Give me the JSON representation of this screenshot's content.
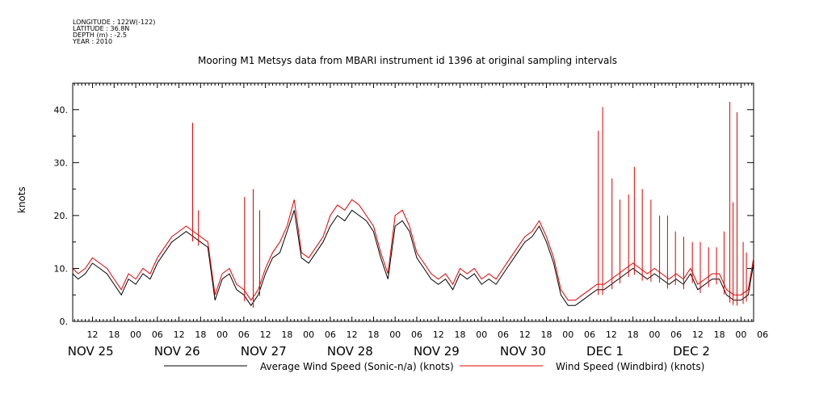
{
  "header": {
    "longitude": "LONGITUDE : 122W(-122)",
    "latitude": "LATITUDE : 36.8N",
    "depth": "DEPTH (m) : -2.5",
    "year": "YEAR : 2010"
  },
  "colors": {
    "average": "#000000",
    "windbird": "#e00000",
    "axis": "#000000"
  },
  "chart_data": {
    "type": "line",
    "title": "Mooring M1 Metsys data from MBARI instrument id 1396 at original sampling intervals",
    "ylabel": "knots",
    "ylim": [
      0,
      45
    ],
    "yticks": [
      "0.",
      "10.",
      "20.",
      "30.",
      "40."
    ],
    "x_unit": "hours since Nov 25 00:00",
    "xlim": [
      6.5,
      195.5
    ],
    "hour_ticks": [
      "12",
      "18",
      "00",
      "06",
      "12",
      "18",
      "00",
      "06",
      "12",
      "18",
      "00",
      "06",
      "12",
      "18",
      "00",
      "06",
      "12",
      "18",
      "00",
      "06",
      "12",
      "18",
      "00",
      "06",
      "12",
      "18",
      "00",
      "06",
      "12",
      "18",
      "00",
      "06"
    ],
    "day_labels": [
      "NOV 25",
      "NOV 26",
      "NOV 27",
      "NOV 28",
      "NOV 29",
      "NOV 30",
      "DEC  1",
      "DEC  2"
    ],
    "grid": false,
    "legend": "bottom",
    "series": [
      {
        "name": "Average Wind Speed (Sonic-n/a) (knots)",
        "color": "#000000",
        "x": [
          6.5,
          8,
          10,
          12,
          14,
          16,
          18,
          20,
          22,
          24,
          26,
          28,
          30,
          32,
          34,
          36,
          38,
          40,
          42,
          44,
          46,
          48,
          50,
          52,
          54,
          56,
          58,
          60,
          62,
          64,
          66,
          68,
          70,
          72,
          74,
          76,
          78,
          80,
          82,
          84,
          86,
          88,
          90,
          92,
          94,
          96,
          98,
          100,
          102,
          104,
          106,
          108,
          110,
          112,
          114,
          116,
          118,
          120,
          122,
          124,
          126,
          128,
          130,
          132,
          134,
          136,
          138,
          140,
          142,
          144,
          146,
          148,
          150,
          152,
          154,
          156,
          158,
          160,
          162,
          164,
          166,
          168,
          170,
          172,
          174,
          176,
          178,
          180,
          182,
          184,
          186,
          188,
          190,
          192,
          194,
          195.5
        ],
        "y": [
          9,
          8,
          9,
          11,
          10,
          9,
          7,
          5,
          8,
          7,
          9,
          8,
          11,
          13,
          15,
          16,
          17,
          16,
          15,
          14,
          4,
          8,
          9,
          6,
          5,
          3,
          5,
          9,
          12,
          13,
          17,
          21,
          12,
          11,
          13,
          15,
          18,
          20,
          19,
          21,
          20,
          19,
          17,
          12,
          8,
          18,
          19,
          17,
          12,
          10,
          8,
          7,
          8,
          6,
          9,
          8,
          9,
          7,
          8,
          7,
          9,
          11,
          13,
          15,
          16,
          18,
          15,
          11,
          5,
          3,
          3,
          4,
          5,
          6,
          6,
          7,
          8,
          9,
          10,
          9,
          8,
          9,
          8,
          7,
          8,
          7,
          9,
          6,
          7,
          8,
          8,
          5,
          4,
          4,
          5,
          11
        ]
      },
      {
        "name": "Wind Speed (Windbird) (knots)",
        "color": "#e00000",
        "x": [
          6.5,
          8,
          10,
          12,
          14,
          16,
          18,
          20,
          22,
          24,
          26,
          28,
          30,
          32,
          34,
          36,
          38,
          40,
          42,
          44,
          46,
          48,
          50,
          52,
          54,
          56,
          58,
          60,
          62,
          64,
          66,
          68,
          70,
          72,
          74,
          76,
          78,
          80,
          82,
          84,
          86,
          88,
          90,
          92,
          94,
          96,
          98,
          100,
          102,
          104,
          106,
          108,
          110,
          112,
          114,
          116,
          118,
          120,
          122,
          124,
          126,
          128,
          130,
          132,
          134,
          136,
          138,
          140,
          142,
          144,
          146,
          148,
          150,
          152,
          154,
          156,
          158,
          160,
          162,
          164,
          166,
          168,
          170,
          172,
          174,
          176,
          178,
          180,
          182,
          184,
          186,
          188,
          190,
          192,
          194,
          195.5
        ],
        "y": [
          10,
          9,
          10,
          12,
          11,
          10,
          8,
          6,
          9,
          8,
          10,
          9,
          12,
          14,
          16,
          17,
          18,
          17,
          16,
          15,
          5,
          9,
          10,
          7,
          6,
          4,
          6,
          10,
          13,
          15,
          18,
          23,
          13,
          12,
          14,
          16,
          20,
          22,
          21,
          23,
          22,
          20,
          18,
          13,
          9,
          20,
          21,
          18,
          13,
          11,
          9,
          8,
          9,
          7,
          10,
          9,
          10,
          8,
          9,
          8,
          10,
          12,
          14,
          16,
          17,
          19,
          16,
          12,
          6,
          4,
          4,
          5,
          6,
          7,
          7,
          8,
          9,
          10,
          11,
          10,
          9,
          10,
          9,
          8,
          9,
          8,
          10,
          7,
          8,
          9,
          9,
          6,
          5,
          5,
          6,
          12
        ]
      }
    ],
    "spikes": [
      {
        "x": 39.8,
        "y": 37.5
      },
      {
        "x": 41.4,
        "y": 21
      },
      {
        "x": 54.2,
        "y": 23.5
      },
      {
        "x": 56.6,
        "y": 25
      },
      {
        "x": 58.4,
        "y": 21
      },
      {
        "x": 152.4,
        "y": 36
      },
      {
        "x": 153.6,
        "y": 40.5
      },
      {
        "x": 156.2,
        "y": 27
      },
      {
        "x": 158.4,
        "y": 23
      },
      {
        "x": 160.8,
        "y": 24
      },
      {
        "x": 162.4,
        "y": 29.2
      },
      {
        "x": 164.6,
        "y": 25
      },
      {
        "x": 167,
        "y": 23
      },
      {
        "x": 169.4,
        "y": 20
      },
      {
        "x": 171.6,
        "y": 20
      },
      {
        "x": 173.8,
        "y": 17
      },
      {
        "x": 176.1,
        "y": 16
      },
      {
        "x": 178.5,
        "y": 15
      },
      {
        "x": 180.7,
        "y": 15
      },
      {
        "x": 183,
        "y": 14
      },
      {
        "x": 185.2,
        "y": 14
      },
      {
        "x": 187.3,
        "y": 17
      },
      {
        "x": 188.9,
        "y": 41.5
      },
      {
        "x": 189.8,
        "y": 22.5
      },
      {
        "x": 190.9,
        "y": 39.5
      },
      {
        "x": 192.6,
        "y": 15
      },
      {
        "x": 193.5,
        "y": 13
      }
    ]
  }
}
